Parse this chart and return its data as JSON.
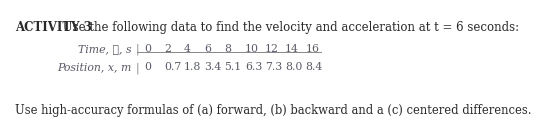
{
  "title_bold": "ACTIVITY 3",
  "title_normal": " Use the following data to find the velocity and acceleration at t = 6 seconds:",
  "row1_label": "Time, t, s",
  "row1_label_italic_char": "t",
  "row2_label": "Position, x, m",
  "row2_label_italic_chars": "x",
  "row1_values": [
    "0",
    "2",
    "4",
    "6",
    "8",
    "10",
    "12",
    "14",
    "16"
  ],
  "row2_values": [
    "0",
    "0.7",
    "1.8",
    "3.4",
    "5.1",
    "6.3",
    "7.3",
    "8.0",
    "8.4"
  ],
  "footer": "Use high-accuracy formulas of (a) forward, (b) backward and a (c) centered differences.",
  "bg_color": "#ffffff",
  "text_color": "#2a2a2a",
  "title_fontsize": 8.5,
  "table_fontsize": 7.8,
  "footer_fontsize": 8.3,
  "label_color": "#5a5a6a",
  "value_color": "#5a5a6a",
  "line_color": "#888888",
  "bar_color": "#888888"
}
